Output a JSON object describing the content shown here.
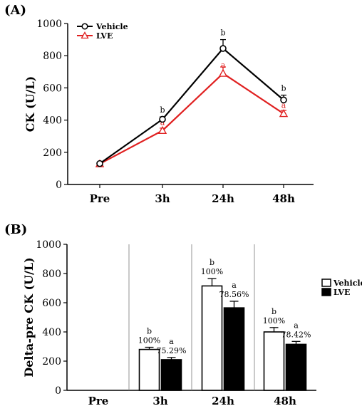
{
  "chart_data": [
    {
      "panel_label": "(A)",
      "type": "line",
      "categories": [
        "Pre",
        "3h",
        "24h",
        "48h"
      ],
      "ylabel": "CK (U/L)",
      "ylim": [
        0,
        1000
      ],
      "yticks": [
        "0",
        "200",
        "400",
        "600",
        "800",
        "1000"
      ],
      "legend_position": "top-left",
      "series": [
        {
          "name": "Vehicle",
          "color": "#000000",
          "marker": "circle",
          "values": [
            130,
            405,
            845,
            525
          ],
          "errors": [
            5,
            15,
            55,
            30
          ],
          "annotations": [
            "",
            "b",
            "b",
            "b"
          ]
        },
        {
          "name": "LVE",
          "color": "#e02020",
          "marker": "triangle",
          "values": [
            128,
            335,
            690,
            440
          ],
          "errors": [
            5,
            15,
            40,
            20
          ],
          "annotations": [
            "",
            "a",
            "a",
            "a"
          ]
        }
      ]
    },
    {
      "panel_label": "(B)",
      "type": "bar",
      "categories": [
        "Pre",
        "3h",
        "24h",
        "48h"
      ],
      "ylabel": "Delta-pre CK (U/L)",
      "ylim": [
        0,
        1000
      ],
      "yticks": [
        "0",
        "200",
        "400",
        "600",
        "800",
        "1000"
      ],
      "legend_position": "right",
      "series": [
        {
          "name": "Vehicle",
          "fill": "#ffffff",
          "values": [
            null,
            280,
            715,
            400
          ],
          "errors": [
            null,
            15,
            50,
            30
          ],
          "annotations": [
            "",
            "b",
            "b",
            "b"
          ],
          "percent_labels": [
            "",
            "100%",
            "100%",
            "100%"
          ]
        },
        {
          "name": "LVE",
          "fill": "#000000",
          "values": [
            null,
            210,
            565,
            315
          ],
          "errors": [
            null,
            15,
            45,
            20
          ],
          "annotations": [
            "",
            "a",
            "a",
            "a"
          ],
          "percent_labels": [
            "",
            "75.29%",
            "78.56%",
            "78.42%"
          ]
        }
      ]
    }
  ]
}
